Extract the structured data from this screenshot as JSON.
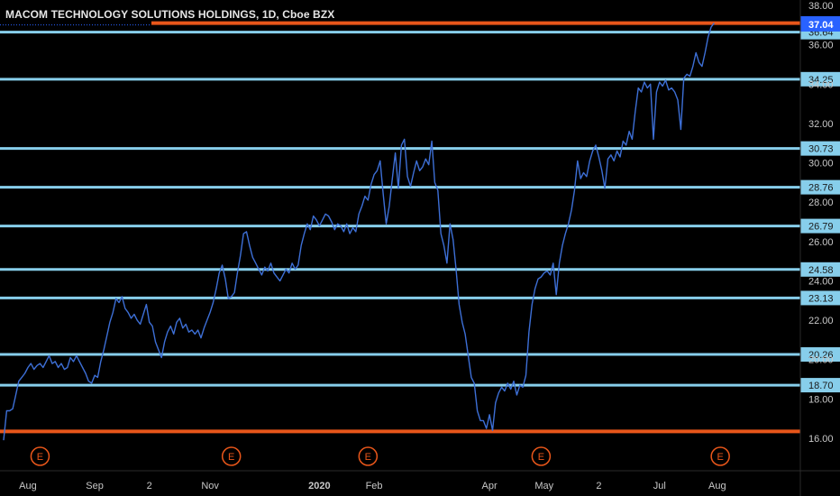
{
  "chart_data": {
    "type": "line",
    "title": "MACOM TECHNOLOGY SOLUTIONS HOLDINGS, 1D, Cboe BZX",
    "y_ticks": [
      16,
      18,
      20,
      22,
      24,
      26,
      28,
      30,
      32,
      34,
      36,
      38
    ],
    "y_tick_labels": [
      "16.00",
      "18.00",
      "20.00",
      "22.00",
      "24.00",
      "26.00",
      "28.00",
      "30.00",
      "32.00",
      "34.00",
      "36.00",
      "38.00"
    ],
    "ylim": [
      14.7,
      38.3
    ],
    "x_tick_labels": [
      "Aug",
      "Sep",
      "2",
      "Nov",
      "2020",
      "Feb",
      "Apr",
      "May",
      "2",
      "Jul",
      "Aug"
    ],
    "x_tick_indices": [
      8,
      30,
      48,
      68,
      104,
      122,
      160,
      178,
      196,
      216,
      235
    ],
    "x_count": 242,
    "price_label": "37.04",
    "price_value": 37.04,
    "levels": [
      {
        "value": 36.64,
        "label": "36.64"
      },
      {
        "value": 34.25,
        "label": "34.25"
      },
      {
        "value": 30.73,
        "label": "30.73"
      },
      {
        "value": 28.76,
        "label": "28.76"
      },
      {
        "value": 26.79,
        "label": "26.79"
      },
      {
        "value": 24.58,
        "label": "24.58"
      },
      {
        "value": 23.13,
        "label": "23.13"
      },
      {
        "value": 20.26,
        "label": "20.26"
      },
      {
        "value": 18.7,
        "label": "18.70"
      }
    ],
    "orange_levels": [
      37.1,
      16.35
    ],
    "earnings": [
      {
        "index": 12,
        "label": "E"
      },
      {
        "index": 75,
        "label": "E"
      },
      {
        "index": 120,
        "label": "E"
      },
      {
        "index": 177,
        "label": "E"
      },
      {
        "index": 236,
        "label": "E"
      }
    ],
    "series": [
      {
        "values": [
          15.9,
          17.4,
          17.4,
          17.5,
          18.2,
          18.9,
          19.1,
          19.3,
          19.6,
          19.8,
          19.5,
          19.7,
          19.8,
          19.6,
          19.9,
          20.2,
          19.8,
          19.9,
          19.6,
          19.8,
          19.5,
          19.6,
          20.1,
          19.9,
          20.2,
          19.9,
          19.6,
          19.3,
          18.9,
          18.8,
          19.2,
          19.1,
          19.9,
          20.5,
          21.2,
          21.9,
          22.4,
          23.1,
          22.9,
          23.2,
          22.6,
          22.4,
          22.1,
          22.3,
          22.0,
          21.8,
          22.3,
          22.8,
          21.9,
          21.7,
          20.9,
          20.5,
          20.1,
          20.9,
          21.4,
          21.7,
          21.3,
          21.9,
          22.1,
          21.6,
          21.8,
          21.4,
          21.5,
          21.3,
          21.5,
          21.1,
          21.6,
          22.0,
          22.4,
          22.9,
          23.6,
          24.4,
          24.8,
          24.1,
          23.1,
          23.2,
          23.4,
          24.4,
          25.3,
          26.4,
          26.5,
          25.8,
          25.2,
          24.9,
          24.6,
          24.3,
          24.7,
          24.5,
          24.9,
          24.4,
          24.2,
          24.0,
          24.3,
          24.6,
          24.4,
          24.9,
          24.6,
          24.8,
          25.8,
          26.4,
          26.9,
          26.6,
          27.3,
          27.1,
          26.8,
          27.1,
          27.4,
          27.3,
          27.0,
          26.6,
          26.9,
          26.8,
          26.5,
          26.9,
          26.4,
          26.7,
          26.5,
          27.4,
          27.8,
          28.3,
          28.1,
          28.9,
          29.4,
          29.6,
          30.1,
          28.4,
          26.9,
          27.8,
          29.2,
          30.5,
          28.7,
          30.9,
          31.2,
          29.3,
          28.8,
          29.5,
          30.1,
          29.6,
          29.8,
          30.2,
          29.9,
          31.1,
          29.0,
          28.6,
          26.4,
          25.8,
          24.9,
          26.9,
          26.1,
          24.6,
          22.8,
          21.9,
          21.3,
          20.2,
          19.1,
          18.8,
          17.4,
          16.9,
          16.9,
          16.5,
          17.2,
          16.4,
          17.8,
          18.3,
          18.6,
          18.4,
          18.8,
          18.5,
          18.9,
          18.2,
          18.7,
          18.6,
          19.2,
          21.4,
          22.8,
          23.6,
          24.1,
          24.2,
          24.4,
          24.5,
          24.3,
          24.9,
          23.3,
          24.9,
          25.8,
          26.4,
          26.9,
          27.6,
          28.6,
          30.1,
          29.2,
          29.5,
          29.3,
          30.1,
          30.6,
          30.9,
          30.3,
          29.6,
          28.7,
          30.2,
          30.4,
          30.1,
          30.6,
          30.3,
          31.1,
          30.9,
          31.6,
          31.2,
          32.6,
          33.8,
          33.6,
          34.1,
          33.8,
          34.0,
          31.2,
          33.6,
          34.1,
          33.9,
          34.2,
          33.7,
          33.8,
          33.6,
          33.2,
          31.7,
          34.3,
          34.5,
          34.4,
          34.9,
          35.6,
          35.1,
          34.9,
          35.6,
          36.4,
          36.9,
          37.1
        ]
      }
    ],
    "colors": {
      "background": "#000000",
      "series": "#3d6fd6",
      "level_line": "#87ceeb",
      "orange_line": "#e8561a",
      "earnings": "#e8561a",
      "price_tag": "#2962ff"
    }
  }
}
